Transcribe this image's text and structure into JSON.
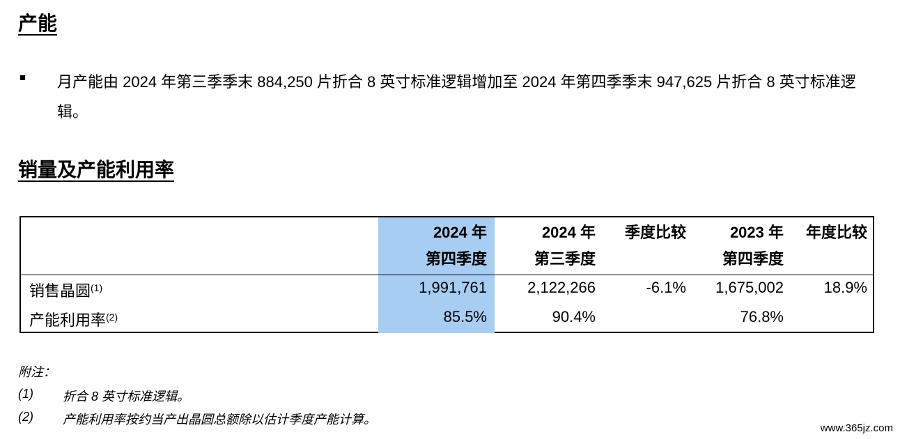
{
  "section1": {
    "title": "产能",
    "bullet": "月产能由 2024 年第三季季末 884,250 片折合 8 英寸标准逻辑增加至 2024 年第四季季末 947,625 片折合 8 英寸标准逻辑。"
  },
  "section2": {
    "title": "销量及产能利用率"
  },
  "table": {
    "headers": {
      "col1_line1": "2024 年",
      "col1_line2": "第四季度",
      "col2_line1": "2024 年",
      "col2_line2": "第三季度",
      "col3_line1": "季度比较",
      "col4_line1": "2023 年",
      "col4_line2": "第四季度",
      "col5_line1": "年度比较"
    },
    "rows": [
      {
        "label": "销售晶圆",
        "note": "(1)",
        "values": [
          "1,991,761",
          "2,122,266",
          "-6.1%",
          "1,675,002",
          "18.9%"
        ]
      },
      {
        "label": "产能利用率",
        "note": "(2)",
        "values": [
          "85.5%",
          "90.4%",
          "",
          "76.8%",
          ""
        ]
      }
    ],
    "highlight_color": "#a8cdf2"
  },
  "notes": {
    "title": "附注：",
    "items": [
      {
        "num": "(1)",
        "text": "折合 8 英寸标准逻辑。"
      },
      {
        "num": "(2)",
        "text": "产能利用率按约当产出晶圆总额除以估计季度产能计算。"
      }
    ]
  },
  "watermark": "www.365jz.com"
}
